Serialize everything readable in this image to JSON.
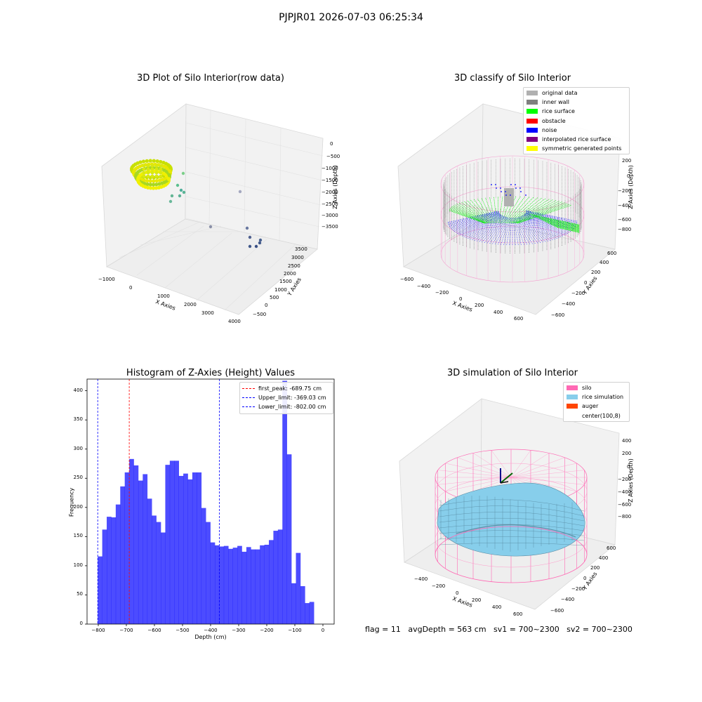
{
  "suptitle": "PJPJR01 2026-07-03 06:25:34",
  "panels": {
    "raw": {
      "title": "3D Plot of Silo Interior(row data)",
      "xlabel": "X Axies",
      "ylabel": "Y Axies",
      "zlabel": "Z Axies (Depth)",
      "xticks": [
        "−1000",
        "0",
        "1000",
        "2000",
        "3000",
        "4000"
      ],
      "yticks": [
        "−500",
        "0",
        "500",
        "1000",
        "1500",
        "2000",
        "2500",
        "3000",
        "3500"
      ],
      "zticks": [
        "0",
        "−500",
        "−1000",
        "−1500",
        "−2000",
        "−2500",
        "−3000",
        "−3500"
      ]
    },
    "classify": {
      "title": "3D classify of Silo Interior",
      "xlabel": "X Axies",
      "ylabel": "Y Axies",
      "zlabel": "Z Axies (Depth)",
      "xticks": [
        "−600",
        "−400",
        "−200",
        "0",
        "200",
        "400",
        "600"
      ],
      "yticks": [
        "−600",
        "−400",
        "−200",
        "0",
        "200",
        "400",
        "600"
      ],
      "zticks": [
        "200",
        "0",
        "−200",
        "−400",
        "−600",
        "−800"
      ],
      "legend": [
        {
          "label": "original data",
          "color": "#b0b0b0"
        },
        {
          "label": "inner wall",
          "color": "#808080"
        },
        {
          "label": "rice surface",
          "color": "#00ff00"
        },
        {
          "label": "obstacle",
          "color": "#ff0000"
        },
        {
          "label": "noise",
          "color": "#0000ff"
        },
        {
          "label": "interpolated rice surface",
          "color": "#800080"
        },
        {
          "label": "symmetric generated points",
          "color": "#ffff00"
        }
      ]
    },
    "simulation": {
      "title": "3D simulation of Silo Interior",
      "xlabel": "X Axies",
      "ylabel": "Y Axies",
      "zlabel": "Z Axies (Depth)",
      "xticks": [
        "−400",
        "−200",
        "0",
        "200",
        "400",
        "600"
      ],
      "yticks": [
        "−600",
        "−400",
        "−200",
        "0",
        "200",
        "400",
        "600"
      ],
      "zticks": [
        "400",
        "200",
        "0",
        "−200",
        "−400",
        "−600",
        "−800"
      ],
      "legend": [
        {
          "label": "silo",
          "color": "#ff69b4"
        },
        {
          "label": "rice simulation",
          "color": "#87ceeb"
        },
        {
          "label": "auger",
          "color": "#ff4500"
        },
        {
          "label": "center(100,8)",
          "color": "#ffffff"
        }
      ],
      "footer": "flag = 11   avgDepth = 563 cm   sv1 = 700~2300   sv2 = 700~2300"
    }
  },
  "chart_data": [
    {
      "type": "scatter",
      "title": "3D Plot of Silo Interior(row data)",
      "xlabel": "X Axies",
      "ylabel": "Y Axies",
      "zlabel": "Z Axies (Depth)",
      "xlim": [
        -1000,
        4000
      ],
      "ylim": [
        -500,
        3500
      ],
      "zlim": [
        -3500,
        0
      ]
    },
    {
      "type": "scatter",
      "title": "3D classify of Silo Interior",
      "xlabel": "X Axies",
      "ylabel": "Y Axies",
      "zlabel": "Z Axies (Depth)",
      "xlim": [
        -600,
        600
      ],
      "ylim": [
        -600,
        600
      ],
      "zlim": [
        -800,
        200
      ],
      "series": [
        {
          "name": "original data"
        },
        {
          "name": "inner wall"
        },
        {
          "name": "rice surface"
        },
        {
          "name": "obstacle"
        },
        {
          "name": "noise"
        },
        {
          "name": "interpolated rice surface"
        },
        {
          "name": "symmetric generated points"
        }
      ]
    },
    {
      "type": "bar",
      "title": "Histogram of Z-Axies (Height) Values",
      "xlabel": "Depth (cm)",
      "ylabel": "Frequency",
      "xlim": [
        -840,
        40
      ],
      "ylim": [
        0,
        420
      ],
      "xticks": [
        -800,
        -700,
        -600,
        -500,
        -400,
        -300,
        -200,
        -100,
        0
      ],
      "yticks": [
        0,
        50,
        100,
        150,
        200,
        250,
        300,
        350,
        400
      ],
      "bin_start": -802.0,
      "bin_width": 16.04,
      "values": [
        116,
        162,
        184,
        183,
        205,
        236,
        260,
        283,
        272,
        246,
        257,
        215,
        186,
        175,
        157,
        273,
        280,
        280,
        254,
        258,
        248,
        260,
        260,
        199,
        175,
        140,
        135,
        133,
        134,
        129,
        131,
        134,
        124,
        132,
        128,
        128,
        135,
        136,
        144,
        160,
        162,
        417,
        291,
        70,
        122,
        65,
        36,
        38
      ],
      "lines": [
        {
          "label": "first_peak: -689.75 cm",
          "x": -689.75,
          "color": "#ff0000"
        },
        {
          "label": "Upper_limit: -369.03 cm",
          "x": -369.03,
          "color": "#0000ff"
        },
        {
          "label": "Lower_limit: -802.00 cm",
          "x": -802.0,
          "color": "#0000ff"
        }
      ]
    },
    {
      "type": "scatter",
      "title": "3D simulation of Silo Interior",
      "xlabel": "X Axies",
      "ylabel": "Y Axies",
      "zlabel": "Z Axies (Depth)",
      "xlim": [
        -500,
        700
      ],
      "ylim": [
        -600,
        600
      ],
      "zlim": [
        -800,
        400
      ],
      "series": [
        {
          "name": "silo"
        },
        {
          "name": "rice simulation"
        },
        {
          "name": "auger"
        },
        {
          "name": "center(100,8)"
        }
      ]
    }
  ]
}
